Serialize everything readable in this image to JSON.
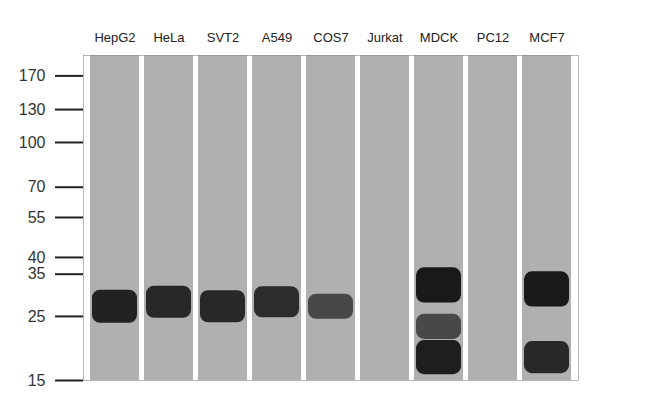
{
  "chart_data": {
    "type": "blot",
    "categories": [
      "HepG2",
      "HeLa",
      "SVT2",
      "A549",
      "COS7",
      "Jurkat",
      "MDCK",
      "PC12",
      "MCF7"
    ],
    "bands": [
      [
        {
          "mw": 27,
          "intensity": 0.9
        }
      ],
      [
        {
          "mw": 28,
          "intensity": 0.85
        }
      ],
      [
        {
          "mw": 27,
          "intensity": 0.85
        }
      ],
      [
        {
          "mw": 28,
          "intensity": 0.8
        }
      ],
      [
        {
          "mw": 27,
          "intensity": 0.5
        }
      ],
      [],
      [
        {
          "mw": 32,
          "intensity": 1
        },
        {
          "mw": 23,
          "intensity": 0.5
        },
        {
          "mw": 18,
          "intensity": 0.95
        }
      ],
      [],
      [
        {
          "mw": 31,
          "intensity": 1
        },
        {
          "mw": 18,
          "intensity": 0.85
        }
      ]
    ],
    "ylim": [
      15,
      200
    ],
    "yticks": [
      170,
      130,
      100,
      70,
      55,
      40,
      35,
      25,
      15
    ],
    "log": "y"
  }
}
